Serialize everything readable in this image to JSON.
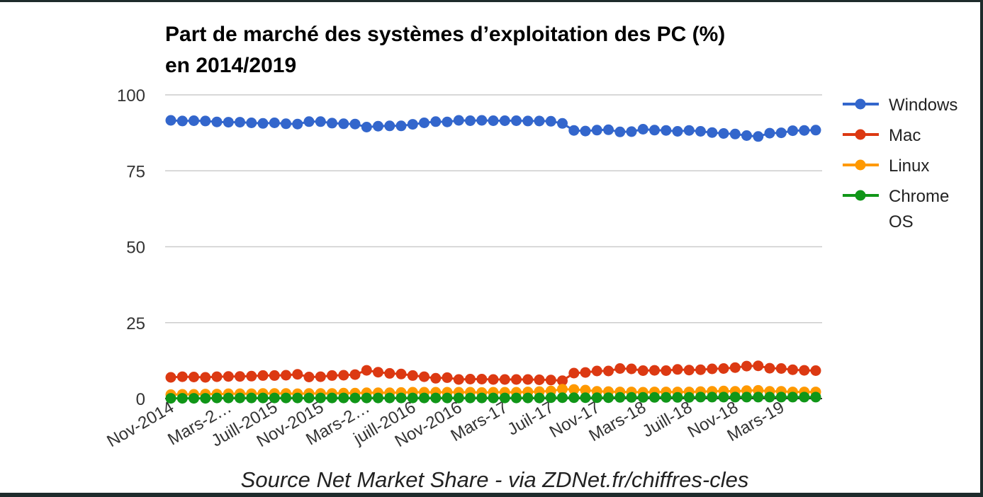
{
  "chart_data": {
    "type": "line",
    "title_lines": [
      "Part de marché des systèmes d’exploitation des PC (%)",
      "en 2014/2019"
    ],
    "xlabel": "",
    "ylabel": "",
    "ylim": [
      0,
      100
    ],
    "yticks": [
      0,
      25,
      50,
      75,
      100
    ],
    "grid": true,
    "legend_position": "right",
    "x_tick_labels": [
      {
        "index": 0,
        "label": "Nov-2014"
      },
      {
        "index": 5,
        "label": "Mars-2…"
      },
      {
        "index": 9,
        "label": "Juill-2015"
      },
      {
        "index": 13,
        "label": "Nov-2015"
      },
      {
        "index": 17,
        "label": "Mars-2…"
      },
      {
        "index": 21,
        "label": "juill-2016"
      },
      {
        "index": 25,
        "label": "Nov-2016"
      },
      {
        "index": 29,
        "label": "Mars-17"
      },
      {
        "index": 33,
        "label": "Juil-17"
      },
      {
        "index": 37,
        "label": "Nov-17"
      },
      {
        "index": 41,
        "label": "Mars-18"
      },
      {
        "index": 45,
        "label": "Juill-18"
      },
      {
        "index": 49,
        "label": "Nov-18"
      },
      {
        "index": 53,
        "label": "Mars-19"
      }
    ],
    "series": [
      {
        "name": "Windows",
        "color": "#3366cc",
        "values": [
          91.6,
          91.4,
          91.5,
          91.4,
          91.1,
          91.0,
          91.0,
          90.8,
          90.6,
          90.8,
          90.5,
          90.4,
          91.2,
          91.2,
          90.7,
          90.5,
          90.4,
          89.4,
          89.7,
          89.8,
          89.8,
          90.3,
          90.8,
          91.2,
          91.1,
          91.6,
          91.5,
          91.6,
          91.5,
          91.5,
          91.5,
          91.4,
          91.4,
          91.3,
          90.6,
          88.3,
          88.1,
          88.4,
          88.5,
          87.8,
          87.9,
          88.7,
          88.4,
          88.3,
          88.0,
          88.3,
          88.0,
          87.6,
          87.3,
          87.1,
          86.6,
          86.3,
          87.4,
          87.5,
          88.2,
          88.3,
          88.4
        ]
      },
      {
        "name": "Mac",
        "color": "#dc3912",
        "values": [
          7.0,
          7.2,
          7.1,
          7.0,
          7.2,
          7.3,
          7.3,
          7.4,
          7.6,
          7.6,
          7.7,
          8.0,
          7.1,
          7.2,
          7.6,
          7.7,
          7.9,
          9.3,
          8.7,
          8.3,
          8.1,
          7.6,
          7.2,
          6.7,
          6.9,
          6.3,
          6.4,
          6.4,
          6.3,
          6.3,
          6.3,
          6.3,
          6.2,
          6.1,
          5.9,
          8.4,
          8.6,
          9.1,
          9.1,
          9.9,
          9.8,
          9.2,
          9.3,
          9.2,
          9.6,
          9.4,
          9.5,
          9.8,
          9.9,
          10.2,
          10.7,
          10.8,
          10.0,
          9.9,
          9.5,
          9.3,
          9.2
        ]
      },
      {
        "name": "Linux",
        "color": "#ff9900",
        "values": [
          1.3,
          1.4,
          1.4,
          1.5,
          1.5,
          1.6,
          1.6,
          1.6,
          1.7,
          1.7,
          1.7,
          1.6,
          1.7,
          1.7,
          1.7,
          1.8,
          1.8,
          1.9,
          1.9,
          1.9,
          2.0,
          2.1,
          2.1,
          2.1,
          2.1,
          2.1,
          2.1,
          2.0,
          2.1,
          2.1,
          2.1,
          2.2,
          2.3,
          2.5,
          3.1,
          3.0,
          2.8,
          2.4,
          2.3,
          2.2,
          2.2,
          2.1,
          2.2,
          2.2,
          2.2,
          2.2,
          2.3,
          2.4,
          2.5,
          2.4,
          2.6,
          2.7,
          2.4,
          2.4,
          2.2,
          2.2,
          2.2
        ]
      },
      {
        "name": "Chrome\nOS",
        "color": "#109618",
        "values": [
          0.1,
          0.1,
          0.1,
          0.1,
          0.2,
          0.2,
          0.2,
          0.2,
          0.2,
          0.2,
          0.2,
          0.2,
          0.2,
          0.2,
          0.2,
          0.2,
          0.2,
          0.2,
          0.2,
          0.2,
          0.2,
          0.2,
          0.2,
          0.2,
          0.2,
          0.2,
          0.2,
          0.2,
          0.2,
          0.2,
          0.2,
          0.2,
          0.2,
          0.3,
          0.3,
          0.3,
          0.3,
          0.3,
          0.3,
          0.4,
          0.4,
          0.4,
          0.4,
          0.4,
          0.4,
          0.4,
          0.5,
          0.5,
          0.5,
          0.5,
          0.5,
          0.5,
          0.5,
          0.5,
          0.5,
          0.5,
          0.5
        ]
      }
    ]
  },
  "source": "Source Net Market Share - via ZDNet.fr/chiffres-cles"
}
